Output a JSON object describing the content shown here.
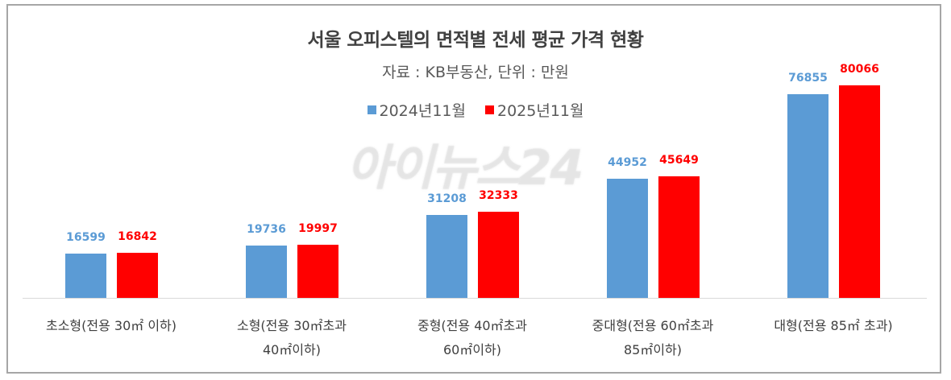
{
  "chart_data": {
    "type": "bar",
    "title": "서울 오피스텔의 면적별 전세 평균 가격 현황",
    "subtitle": "자료 : KB부동산,  단위 : 만원",
    "categories": [
      "초소형(전용 30㎡ 이하)",
      "소형(전용 30㎡초과 40㎡이하)",
      "중형(전용 40㎡초과 60㎡이하)",
      "중대형(전용 60㎡초과 85㎡이하)",
      "대형(전용 85㎡ 초과)"
    ],
    "category_lines": [
      [
        "초소형(전용 30㎡ 이하)"
      ],
      [
        "소형(전용 30㎡초과",
        "40㎡이하)"
      ],
      [
        "중형(전용 40㎡초과",
        "60㎡이하)"
      ],
      [
        "중대형(전용 60㎡초과",
        "85㎡이하)"
      ],
      [
        "대형(전용 85㎡ 초과)"
      ]
    ],
    "series": [
      {
        "name": "2024년11월",
        "color": "#5b9bd5",
        "values": [
          16599,
          19736,
          31208,
          44952,
          76855
        ]
      },
      {
        "name": "2025년11월",
        "color": "#ff0000",
        "values": [
          16842,
          19997,
          32333,
          45649,
          80066
        ]
      }
    ],
    "xlabel": "",
    "ylabel": "",
    "ylim": [
      0,
      85000
    ],
    "grid": false,
    "legend_position": "top",
    "data_labels": true
  },
  "watermark": "아이뉴스24",
  "label_colors": {
    "2024년11월": "#5b9bd5",
    "2025년11월": "#ff0000"
  }
}
